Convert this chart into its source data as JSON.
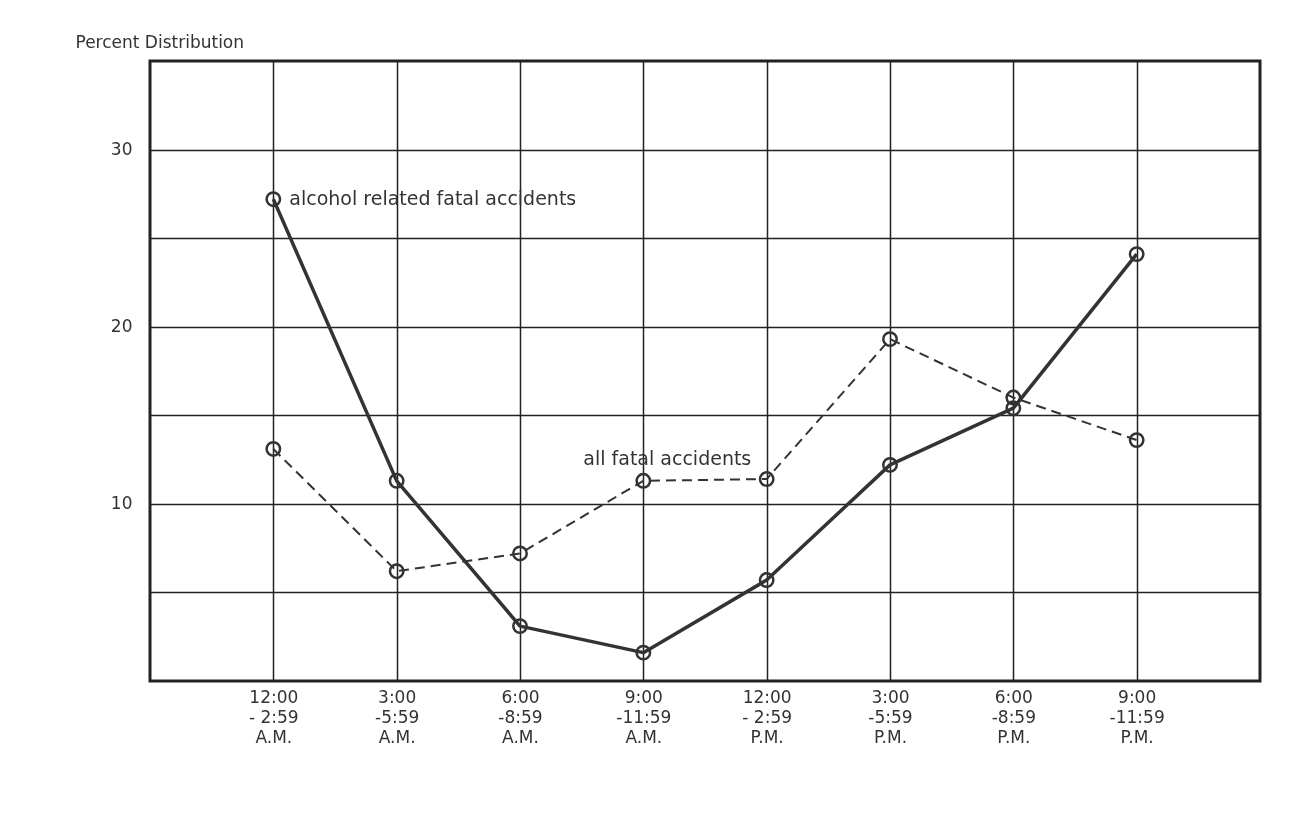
{
  "chart_data": {
    "type": "line",
    "ylabel": "Percent Distribution",
    "categories": [
      "12:00\n- 2:59\nA.M.",
      "3:00\n-5:59\nA.M.",
      "6:00\n-8:59\nA.M.",
      "9:00\n-11:59\nA.M.",
      "12:00\n- 2:59\nP.M.",
      "3:00\n-5:59\nP.M.",
      "6:00\n-8:59\nP.M.",
      "9:00\n-11:59\nP.M."
    ],
    "series": [
      {
        "name": "alcohol related fatal accidents",
        "color": "#333333",
        "line_style": "solid",
        "values": [
          27.2,
          11.3,
          3.1,
          1.6,
          5.7,
          12.2,
          15.4,
          24.1
        ]
      },
      {
        "name": "all fatal accidents",
        "color": "#333333",
        "line_style": "dashed",
        "values": [
          13.1,
          6.2,
          7.2,
          11.3,
          11.4,
          19.3,
          16.0,
          13.6
        ]
      }
    ],
    "ylim": [
      0,
      35
    ],
    "yticks": [
      {
        "value": 5,
        "label": null
      },
      10,
      {
        "value": 15,
        "label": null
      },
      20,
      {
        "value": 25,
        "label": null
      },
      30
    ],
    "grid": true,
    "legend": false,
    "marker": "circle"
  }
}
